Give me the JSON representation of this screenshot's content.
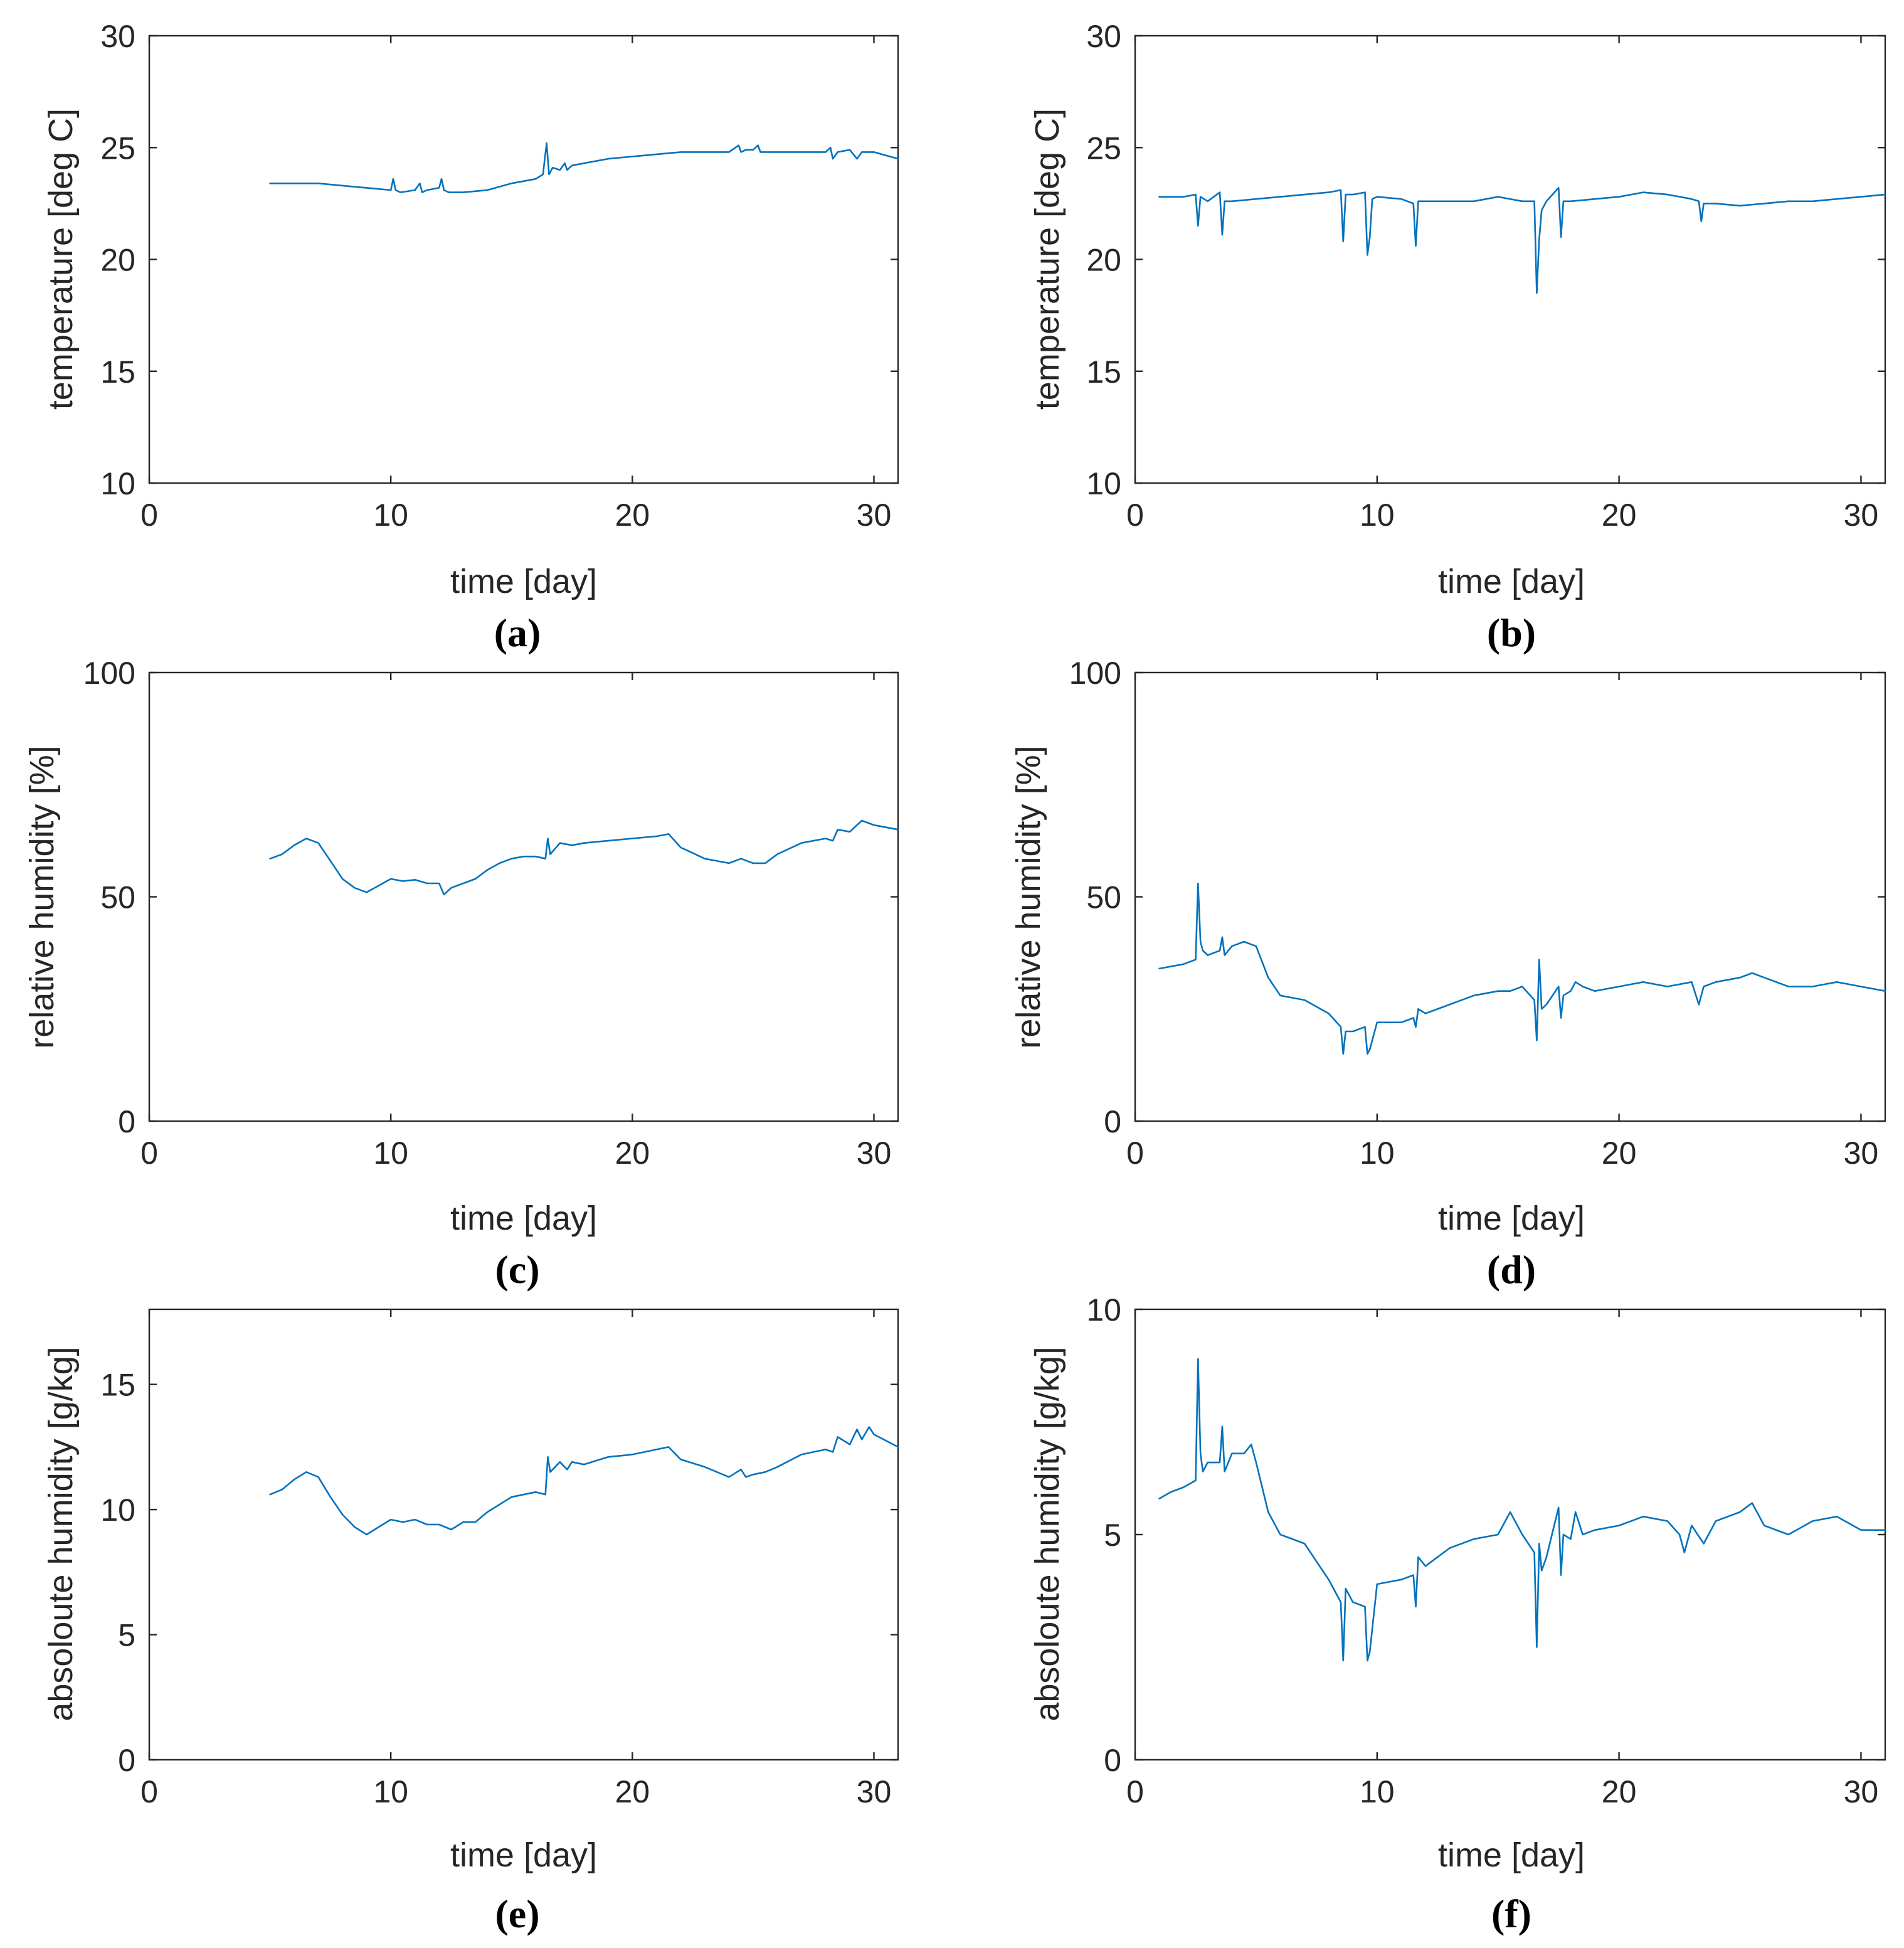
{
  "figure": {
    "colors": {
      "series": "#0072bd",
      "axes": "#262626",
      "background": "#ffffff"
    }
  },
  "chart_data": [
    {
      "id": "a",
      "type": "line",
      "panel_label": "(a)",
      "xlabel": "time [day]",
      "ylabel": "temperature [deg C]",
      "xlim": [
        0,
        31
      ],
      "ylim": [
        10,
        30
      ],
      "xticks": [
        0,
        10,
        20,
        30
      ],
      "yticks": [
        10,
        15,
        20,
        25,
        30
      ],
      "grid": false,
      "series": [
        {
          "name": "temperature",
          "x": [
            5,
            6,
            7,
            8,
            9,
            10,
            10.1,
            10.2,
            10.4,
            11,
            11.2,
            11.3,
            11.5,
            12,
            12.1,
            12.2,
            12.4,
            13,
            14,
            15,
            16,
            16.3,
            16.45,
            16.55,
            16.7,
            17,
            17.2,
            17.3,
            17.5,
            18,
            19,
            20,
            21,
            22,
            23,
            24,
            24.4,
            24.5,
            24.7,
            25,
            25.2,
            25.3,
            25.5,
            26,
            27,
            28,
            28.2,
            28.3,
            28.5,
            29,
            29.3,
            29.5,
            30,
            31
          ],
          "y": [
            23.4,
            23.4,
            23.4,
            23.3,
            23.2,
            23.1,
            23.6,
            23.1,
            23.0,
            23.1,
            23.4,
            23.0,
            23.1,
            23.2,
            23.6,
            23.1,
            23.0,
            23.0,
            23.1,
            23.4,
            23.6,
            23.8,
            25.2,
            23.8,
            24.1,
            24.0,
            24.3,
            24.0,
            24.2,
            24.3,
            24.5,
            24.6,
            24.7,
            24.8,
            24.8,
            24.8,
            25.1,
            24.8,
            24.9,
            24.9,
            25.1,
            24.8,
            24.8,
            24.8,
            24.8,
            24.8,
            25.0,
            24.5,
            24.8,
            24.9,
            24.5,
            24.8,
            24.8,
            24.5
          ]
        }
      ]
    },
    {
      "id": "b",
      "type": "line",
      "panel_label": "(b)",
      "xlabel": "time [day]",
      "ylabel": "temperature [deg C]",
      "xlim": [
        0,
        31
      ],
      "ylim": [
        10,
        30
      ],
      "xticks": [
        0,
        10,
        20,
        30
      ],
      "yticks": [
        10,
        15,
        20,
        25,
        30
      ],
      "grid": false,
      "series": [
        {
          "name": "temperature",
          "x": [
            1,
            2,
            2.5,
            2.6,
            2.7,
            3,
            3.5,
            3.6,
            3.7,
            4,
            5,
            6,
            7,
            8,
            8.5,
            8.6,
            8.7,
            9,
            9.5,
            9.6,
            9.7,
            9.8,
            10,
            11,
            11.5,
            11.6,
            11.7,
            12,
            13,
            14,
            15,
            16,
            16.5,
            16.6,
            16.7,
            16.8,
            17,
            17.5,
            17.6,
            17.7,
            18,
            19,
            20,
            21,
            22,
            23,
            23.3,
            23.4,
            23.5,
            24,
            25,
            26,
            27,
            28,
            29,
            30,
            31
          ],
          "y": [
            22.8,
            22.8,
            22.9,
            21.5,
            22.8,
            22.6,
            23.0,
            21.1,
            22.6,
            22.6,
            22.7,
            22.8,
            22.9,
            23.0,
            23.1,
            20.8,
            22.9,
            22.9,
            23.0,
            20.2,
            21.0,
            22.7,
            22.8,
            22.7,
            22.5,
            20.6,
            22.6,
            22.6,
            22.6,
            22.6,
            22.8,
            22.6,
            22.6,
            18.5,
            20.9,
            22.2,
            22.6,
            23.2,
            21.0,
            22.6,
            22.6,
            22.7,
            22.8,
            23.0,
            22.9,
            22.7,
            22.6,
            21.7,
            22.5,
            22.5,
            22.4,
            22.5,
            22.6,
            22.6,
            22.7,
            22.8,
            22.9
          ]
        }
      ]
    },
    {
      "id": "c",
      "type": "line",
      "panel_label": "(c)",
      "xlabel": "time [day]",
      "ylabel": "relative humidity [%]",
      "xlim": [
        0,
        31
      ],
      "ylim": [
        0,
        100
      ],
      "xticks": [
        0,
        10,
        20,
        30
      ],
      "yticks": [
        0,
        50,
        100
      ],
      "grid": false,
      "series": [
        {
          "name": "relative humidity",
          "x": [
            5,
            5.5,
            6,
            6.5,
            7,
            7.5,
            8,
            8.5,
            9,
            9.5,
            10,
            10.5,
            11,
            11.5,
            12,
            12.2,
            12.5,
            13,
            13.5,
            14,
            14.5,
            15,
            15.5,
            16,
            16.4,
            16.5,
            16.6,
            17,
            17.5,
            18,
            19,
            20,
            21,
            21.5,
            22,
            23,
            24,
            24.5,
            25,
            25.5,
            26,
            27,
            28,
            28.3,
            28.5,
            29,
            29.3,
            29.5,
            30,
            31
          ],
          "y": [
            58.5,
            59.5,
            61.5,
            63,
            62,
            58,
            54,
            52,
            51,
            52.5,
            54,
            53.5,
            53.8,
            53,
            53,
            50.5,
            52,
            53,
            54,
            56,
            57.5,
            58.5,
            59,
            59,
            58.5,
            63,
            59.5,
            62,
            61.5,
            62,
            62.5,
            63,
            63.5,
            64,
            61,
            58.5,
            57.5,
            58.5,
            57.5,
            57.5,
            59.5,
            62,
            63,
            62.5,
            65,
            64.5,
            66,
            67,
            66,
            65
          ]
        }
      ]
    },
    {
      "id": "d",
      "type": "line",
      "panel_label": "(d)",
      "xlabel": "time [day]",
      "ylabel": "relative humidity [%]",
      "xlim": [
        0,
        31
      ],
      "ylim": [
        0,
        100
      ],
      "xticks": [
        0,
        10,
        20,
        30
      ],
      "yticks": [
        0,
        50,
        100
      ],
      "grid": false,
      "series": [
        {
          "name": "relative humidity",
          "x": [
            1,
            2,
            2.5,
            2.6,
            2.7,
            2.8,
            3,
            3.5,
            3.6,
            3.7,
            4,
            4.5,
            5,
            5.5,
            6,
            7,
            8,
            8.5,
            8.6,
            8.7,
            9,
            9.5,
            9.6,
            9.7,
            10,
            11,
            11.5,
            11.6,
            11.7,
            12,
            13,
            14,
            15,
            15.5,
            16,
            16.5,
            16.6,
            16.7,
            16.8,
            17,
            17.5,
            17.6,
            17.7,
            18,
            18.2,
            18.5,
            19,
            20,
            21,
            22,
            23,
            23.3,
            23.5,
            24,
            25,
            25.5,
            26,
            27,
            28,
            29,
            30,
            31
          ],
          "y": [
            34,
            35,
            36,
            53,
            40,
            38,
            37,
            38,
            41,
            37,
            39,
            40,
            39,
            32,
            28,
            27,
            24,
            21,
            15,
            20,
            20,
            21,
            15,
            16,
            22,
            22,
            23,
            21,
            25,
            24,
            26,
            28,
            29,
            29,
            30,
            27,
            18,
            36,
            25,
            26,
            30,
            23,
            28,
            29,
            31,
            30,
            29,
            30,
            31,
            30,
            31,
            26,
            30,
            31,
            32,
            33,
            32,
            30,
            30,
            31,
            30,
            29
          ]
        }
      ]
    },
    {
      "id": "e",
      "type": "line",
      "panel_label": "(e)",
      "xlabel": "time [day]",
      "ylabel": "absoloute humidity [g/kg]",
      "xlim": [
        0,
        31
      ],
      "ylim": [
        0,
        18
      ],
      "xticks": [
        0,
        10,
        20,
        30
      ],
      "yticks": [
        0,
        5,
        10,
        15
      ],
      "grid": false,
      "series": [
        {
          "name": "absolute humidity",
          "x": [
            5,
            5.5,
            6,
            6.5,
            7,
            7.5,
            8,
            8.5,
            9,
            9.5,
            10,
            10.5,
            11,
            11.5,
            12,
            12.5,
            13,
            13.5,
            14,
            15,
            16,
            16.4,
            16.5,
            16.6,
            17,
            17.3,
            17.5,
            18,
            19,
            20,
            21,
            21.5,
            22,
            23,
            23.5,
            24,
            24.5,
            24.7,
            25,
            25.5,
            26,
            27,
            28,
            28.3,
            28.5,
            29,
            29.3,
            29.5,
            29.8,
            30,
            31
          ],
          "y": [
            10.6,
            10.8,
            11.2,
            11.5,
            11.3,
            10.5,
            9.8,
            9.3,
            9.0,
            9.3,
            9.6,
            9.5,
            9.6,
            9.4,
            9.4,
            9.2,
            9.5,
            9.5,
            9.9,
            10.5,
            10.7,
            10.6,
            12.1,
            11.5,
            11.9,
            11.6,
            11.9,
            11.8,
            12.1,
            12.2,
            12.4,
            12.5,
            12.0,
            11.7,
            11.5,
            11.3,
            11.6,
            11.3,
            11.4,
            11.5,
            11.7,
            12.2,
            12.4,
            12.3,
            12.9,
            12.6,
            13.2,
            12.8,
            13.3,
            13.0,
            12.5
          ]
        }
      ]
    },
    {
      "id": "f",
      "type": "line",
      "panel_label": "(f)",
      "xlabel": "time [day]",
      "ylabel": "absoloute humidity [g/kg]",
      "xlim": [
        0,
        31
      ],
      "ylim": [
        0,
        10
      ],
      "xticks": [
        0,
        10,
        20,
        30
      ],
      "yticks": [
        0,
        5,
        10
      ],
      "grid": false,
      "series": [
        {
          "name": "absolute humidity",
          "x": [
            1,
            1.5,
            2,
            2.5,
            2.6,
            2.7,
            2.8,
            3,
            3.5,
            3.6,
            3.7,
            4,
            4.5,
            4.8,
            5,
            5.5,
            6,
            7,
            8,
            8.5,
            8.6,
            8.7,
            9,
            9.5,
            9.6,
            9.7,
            10,
            11,
            11.5,
            11.6,
            11.7,
            12,
            13,
            14,
            15,
            15.5,
            16,
            16.5,
            16.6,
            16.7,
            16.8,
            17,
            17.5,
            17.6,
            17.7,
            18,
            18.2,
            18.5,
            19,
            20,
            21,
            22,
            22.5,
            22.7,
            23,
            23.5,
            24,
            25,
            25.5,
            26,
            27,
            28,
            29,
            30,
            31
          ],
          "y": [
            5.8,
            5.95,
            6.05,
            6.2,
            8.9,
            6.8,
            6.4,
            6.6,
            6.6,
            7.4,
            6.4,
            6.8,
            6.8,
            7.0,
            6.6,
            5.5,
            5.0,
            4.8,
            4.0,
            3.5,
            2.2,
            3.8,
            3.5,
            3.4,
            2.2,
            2.4,
            3.9,
            4.0,
            4.1,
            3.4,
            4.5,
            4.3,
            4.7,
            4.9,
            5.0,
            5.5,
            5.0,
            4.6,
            2.5,
            4.8,
            4.2,
            4.5,
            5.6,
            4.1,
            5.0,
            4.9,
            5.5,
            5.0,
            5.1,
            5.2,
            5.4,
            5.3,
            5.0,
            4.6,
            5.2,
            4.8,
            5.3,
            5.5,
            5.7,
            5.2,
            5.0,
            5.3,
            5.4,
            5.1,
            5.1
          ]
        }
      ]
    }
  ]
}
